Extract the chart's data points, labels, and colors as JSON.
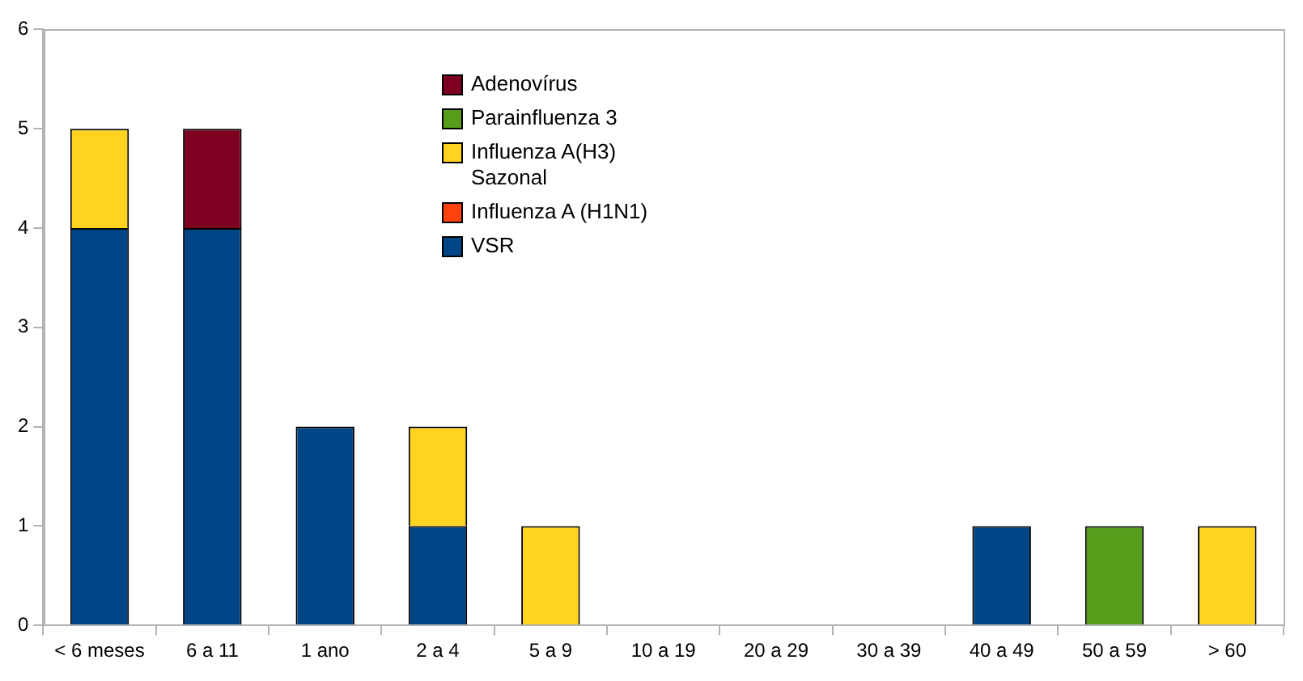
{
  "chart_data": {
    "type": "bar",
    "stacked": true,
    "categories": [
      "< 6 meses",
      "6 a 11",
      "1 ano",
      "2 a 4",
      "5 a 9",
      "10 a 19",
      "20 a 29",
      "30 a 39",
      "40 a 49",
      "50 a 59",
      "> 60"
    ],
    "series": [
      {
        "name": "VSR",
        "color": "#004586",
        "values": [
          4,
          4,
          2,
          1,
          0,
          0,
          0,
          0,
          1,
          0,
          0
        ]
      },
      {
        "name": "Influenza A (H1N1)",
        "color": "#ff420e",
        "values": [
          0,
          0,
          0,
          0,
          0,
          0,
          0,
          0,
          0,
          0,
          0
        ]
      },
      {
        "name": "Influenza A(H3) Sazonal",
        "color": "#ffd320",
        "values": [
          1,
          0,
          0,
          1,
          1,
          0,
          0,
          0,
          0,
          0,
          1
        ]
      },
      {
        "name": "Parainfluenza 3",
        "color": "#579d1c",
        "values": [
          0,
          0,
          0,
          0,
          0,
          0,
          0,
          0,
          0,
          1,
          0
        ]
      },
      {
        "name": "Adenovírus",
        "color": "#7e0021",
        "values": [
          0,
          1,
          0,
          0,
          0,
          0,
          0,
          0,
          0,
          0,
          0
        ]
      }
    ],
    "ylim": [
      0,
      6
    ],
    "yticks": [
      0,
      1,
      2,
      3,
      4,
      5,
      6
    ],
    "grid": false,
    "legend": "top"
  }
}
